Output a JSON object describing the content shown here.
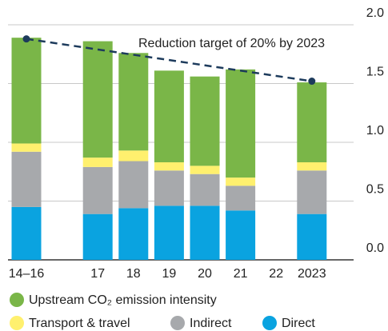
{
  "chart_data": {
    "type": "bar",
    "stacked": true,
    "categories": [
      "14–16",
      null,
      "17",
      "18",
      "19",
      "20",
      "21",
      "22",
      "2023"
    ],
    "series": [
      {
        "name": "Direct",
        "color": "#0aa3e0",
        "values": [
          0.45,
          null,
          0.39,
          0.44,
          0.46,
          0.46,
          0.42,
          null,
          0.39
        ]
      },
      {
        "name": "Indirect",
        "color": "#a7a9ac",
        "values": [
          0.47,
          null,
          0.4,
          0.4,
          0.3,
          0.27,
          0.21,
          null,
          0.37
        ]
      },
      {
        "name": "Transport & travel",
        "color": "#fff06e",
        "values": [
          0.07,
          null,
          0.08,
          0.09,
          0.07,
          0.07,
          0.07,
          null,
          0.07
        ]
      },
      {
        "name": "Upstream CO₂ emission intensity",
        "color": "#7ab648",
        "values": [
          0.9,
          null,
          0.99,
          0.83,
          0.78,
          0.76,
          0.92,
          null,
          0.68
        ]
      }
    ],
    "target": {
      "label": "Reduction target of 20% by 2023",
      "color": "#1d3b5c",
      "x": [
        "14–16",
        "2023"
      ],
      "values": [
        1.88,
        1.52
      ]
    },
    "ylim": [
      0,
      2.0
    ],
    "yticks": [
      {
        "value": 0,
        "label": "0.0"
      },
      0.5,
      {
        "value": 1,
        "label": "1.0"
      },
      1.5,
      {
        "value": 2,
        "label": "2.0"
      }
    ],
    "grid": true,
    "legend": "bottom"
  }
}
